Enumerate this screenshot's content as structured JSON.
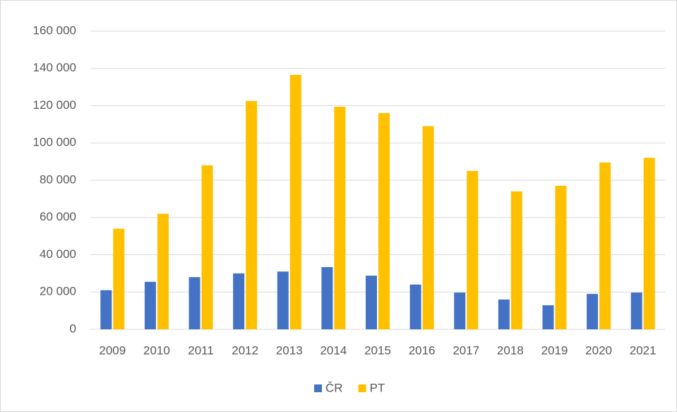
{
  "chart_data": {
    "type": "bar",
    "categories": [
      "2009",
      "2010",
      "2011",
      "2012",
      "2013",
      "2014",
      "2015",
      "2016",
      "2017",
      "2018",
      "2019",
      "2020",
      "2021"
    ],
    "series": [
      {
        "name": "ČR",
        "color": "#4472c4",
        "values": [
          21000,
          25500,
          28000,
          30000,
          31000,
          33400,
          28800,
          24000,
          19700,
          16000,
          12900,
          19000,
          19700
        ]
      },
      {
        "name": "PT",
        "color": "#ffc000",
        "values": [
          54000,
          62000,
          88000,
          122500,
          136500,
          119400,
          116000,
          109000,
          85000,
          74000,
          77000,
          89500,
          92000
        ]
      }
    ],
    "ylim": [
      0,
      160000
    ],
    "yticks": [
      0,
      {
        "value": 20000,
        "label": "20 000"
      },
      {
        "value": 40000,
        "label": "40 000"
      },
      {
        "value": 60000,
        "label": "60 000"
      },
      {
        "value": 80000,
        "label": "80 000"
      },
      {
        "value": 100000,
        "label": "100 000"
      },
      {
        "value": 120000,
        "label": "120 000"
      },
      {
        "value": 140000,
        "label": "140 000"
      },
      {
        "value": 160000,
        "label": "160 000"
      }
    ],
    "grid": true,
    "legend": "bottom"
  }
}
